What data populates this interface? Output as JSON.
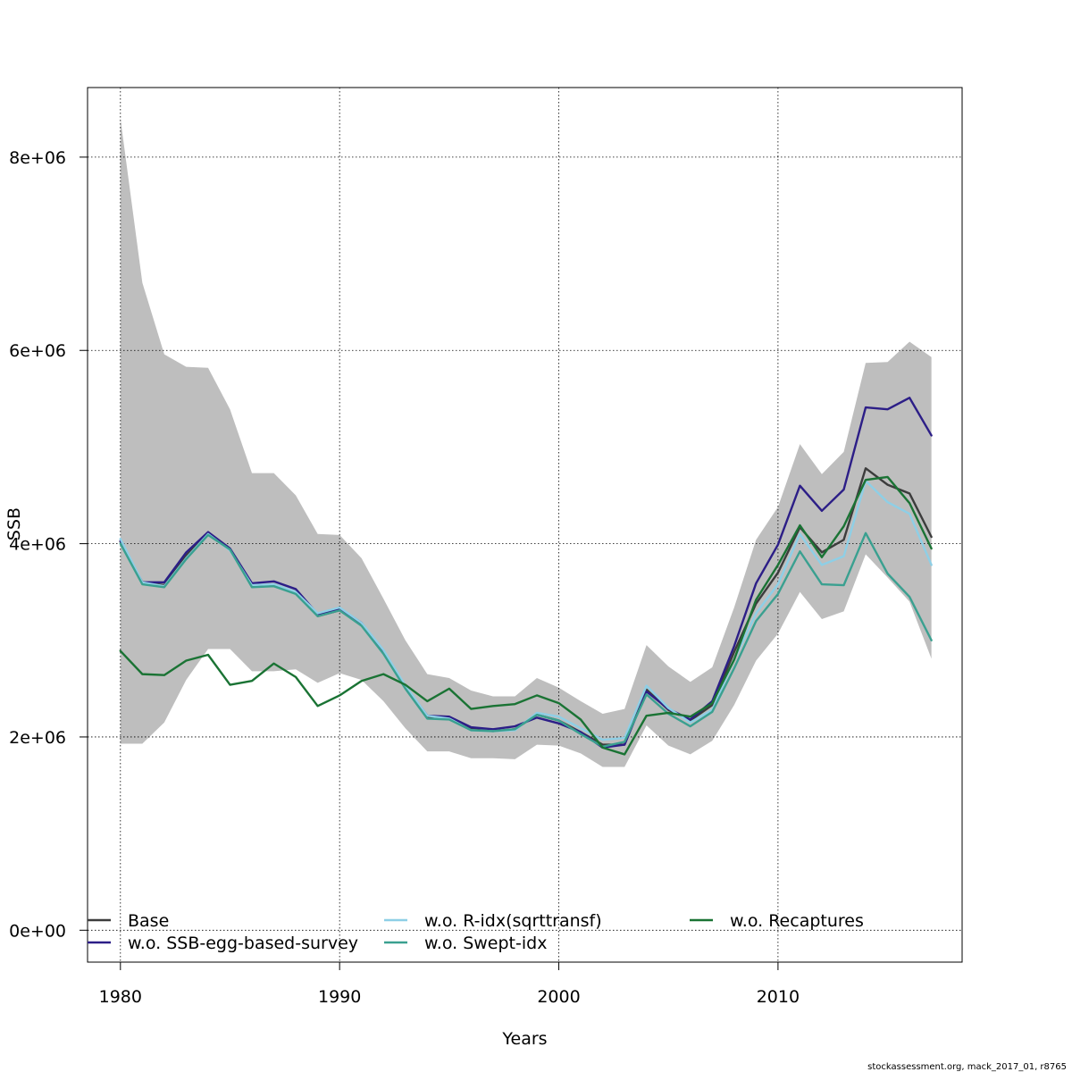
{
  "chart_data": {
    "type": "line",
    "xlabel": "Years",
    "ylabel": "SSB",
    "xlim": [
      1978.5,
      2018.4
    ],
    "ylim": [
      -330000,
      8720000
    ],
    "x_ticks": [
      1980,
      1990,
      2000,
      2010
    ],
    "x_tick_labels": [
      "1980",
      "1990",
      "2000",
      "2010"
    ],
    "y_ticks": [
      0,
      2000000,
      4000000,
      6000000,
      8000000
    ],
    "y_tick_labels": [
      "0e+00",
      "2e+06",
      "4e+06",
      "6e+06",
      "8e+06"
    ],
    "grid": true,
    "legend_position": "bottom",
    "x": [
      1980,
      1981,
      1982,
      1983,
      1984,
      1985,
      1986,
      1987,
      1988,
      1989,
      1990,
      1991,
      1992,
      1993,
      1994,
      1995,
      1996,
      1997,
      1998,
      1999,
      2000,
      2001,
      2002,
      2003,
      2004,
      2005,
      2006,
      2007,
      2008,
      2009,
      2010,
      2011,
      2012,
      2013,
      2014,
      2015,
      2016,
      2017
    ],
    "band": {
      "color": "#bebebe",
      "upper": [
        8400000,
        6700000,
        5960000,
        5830000,
        5820000,
        5390000,
        4730000,
        4730000,
        4500000,
        4100000,
        4090000,
        3850000,
        3430000,
        3000000,
        2650000,
        2610000,
        2480000,
        2420000,
        2420000,
        2610000,
        2510000,
        2370000,
        2240000,
        2290000,
        2950000,
        2730000,
        2570000,
        2720000,
        3340000,
        4040000,
        4380000,
        5030000,
        4720000,
        4950000,
        5870000,
        5880000,
        6090000,
        5930000
      ],
      "lower": [
        1930000,
        1930000,
        2150000,
        2590000,
        2910000,
        2910000,
        2680000,
        2680000,
        2700000,
        2560000,
        2660000,
        2590000,
        2370000,
        2090000,
        1850000,
        1850000,
        1780000,
        1780000,
        1770000,
        1920000,
        1910000,
        1830000,
        1690000,
        1690000,
        2120000,
        1910000,
        1820000,
        1960000,
        2330000,
        2790000,
        3070000,
        3500000,
        3220000,
        3300000,
        3890000,
        3650000,
        3400000,
        2810000
      ]
    },
    "series": [
      {
        "name": "Base",
        "color": "#3c3c3c",
        "values": [
          4020000,
          3600000,
          3570000,
          3880000,
          4100000,
          3940000,
          3560000,
          3580000,
          3490000,
          3250000,
          3310000,
          3160000,
          2870000,
          2510000,
          2210000,
          2200000,
          2080000,
          2060000,
          2080000,
          2230000,
          2170000,
          2050000,
          1920000,
          1920000,
          2490000,
          2280000,
          2170000,
          2330000,
          2880000,
          3380000,
          3700000,
          4170000,
          3910000,
          4040000,
          4780000,
          4610000,
          4520000,
          4070000
        ]
      },
      {
        "name": "w.o. SSB-egg-based-survey",
        "color": "#2c1e87",
        "values": [
          4030000,
          3600000,
          3600000,
          3910000,
          4120000,
          3950000,
          3590000,
          3610000,
          3530000,
          3270000,
          3330000,
          3180000,
          2880000,
          2520000,
          2220000,
          2210000,
          2100000,
          2080000,
          2110000,
          2200000,
          2140000,
          2050000,
          1890000,
          1920000,
          2470000,
          2290000,
          2180000,
          2370000,
          2940000,
          3590000,
          3990000,
          4600000,
          4340000,
          4560000,
          5410000,
          5390000,
          5510000,
          5120000
        ]
      },
      {
        "name": "w.o. R-idx(sqrttransf)",
        "color": "#8ecfe6",
        "values": [
          4050000,
          3600000,
          3560000,
          3850000,
          4100000,
          3930000,
          3570000,
          3580000,
          3500000,
          3280000,
          3340000,
          3180000,
          2900000,
          2530000,
          2220000,
          2190000,
          2070000,
          2060000,
          2070000,
          2250000,
          2210000,
          2090000,
          1970000,
          1990000,
          2530000,
          2300000,
          2150000,
          2280000,
          2800000,
          3280000,
          3580000,
          4100000,
          3780000,
          3870000,
          4650000,
          4430000,
          4310000,
          3780000
        ]
      },
      {
        "name": "w.o. Swept-idx",
        "color": "#3aa090",
        "values": [
          4000000,
          3580000,
          3550000,
          3840000,
          4090000,
          3940000,
          3550000,
          3560000,
          3480000,
          3250000,
          3310000,
          3150000,
          2860000,
          2500000,
          2190000,
          2180000,
          2070000,
          2060000,
          2080000,
          2230000,
          2170000,
          2030000,
          1900000,
          1950000,
          2440000,
          2240000,
          2110000,
          2260000,
          2710000,
          3200000,
          3480000,
          3920000,
          3580000,
          3570000,
          4110000,
          3690000,
          3450000,
          3000000
        ]
      },
      {
        "name": "w.o. Recaptures",
        "color": "#1a7334",
        "values": [
          2890000,
          2650000,
          2640000,
          2790000,
          2850000,
          2540000,
          2580000,
          2760000,
          2620000,
          2320000,
          2430000,
          2580000,
          2650000,
          2540000,
          2370000,
          2500000,
          2290000,
          2320000,
          2340000,
          2430000,
          2350000,
          2180000,
          1890000,
          1820000,
          2220000,
          2250000,
          2210000,
          2350000,
          2800000,
          3420000,
          3780000,
          4190000,
          3860000,
          4180000,
          4660000,
          4690000,
          4420000,
          3950000
        ]
      }
    ]
  },
  "legend": {
    "items": [
      {
        "label": "Base",
        "color": "#3c3c3c"
      },
      {
        "label": "w.o. SSB-egg-based-survey",
        "color": "#2c1e87"
      },
      {
        "label": "w.o. R-idx(sqrttransf)",
        "color": "#8ecfe6"
      },
      {
        "label": "w.o. Swept-idx",
        "color": "#3aa090"
      },
      {
        "label": "w.o. Recaptures",
        "color": "#1a7334"
      }
    ]
  },
  "footer": {
    "text": "stockassessment.org, mack_2017_01, r8765"
  }
}
